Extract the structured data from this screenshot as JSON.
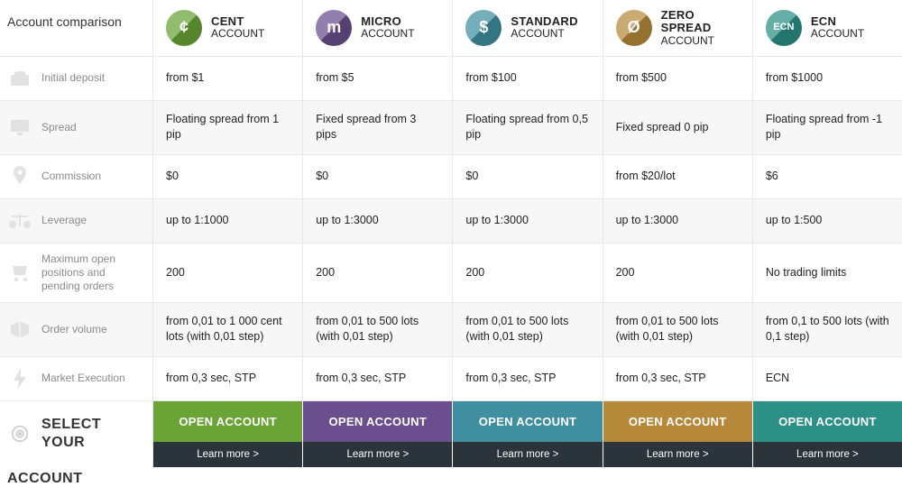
{
  "header_title": "Account comparison",
  "accounts": [
    {
      "id": "cent",
      "name": "CENT",
      "sub": "ACCOUNT",
      "badge_text": "¢",
      "badge_color": "#6aa436",
      "btn_bg": "#6aa436",
      "btn_label": "OPEN ACCOUNT",
      "learn": "Learn more >"
    },
    {
      "id": "micro",
      "name": "MICRO",
      "sub": "ACCOUNT",
      "badge_text": "m",
      "badge_color": "#6a4e8e",
      "btn_bg": "#6a4e8e",
      "btn_label": "OPEN ACCOUNT",
      "learn": "Learn more >"
    },
    {
      "id": "standard",
      "name": "STANDARD",
      "sub": "ACCOUNT",
      "badge_text": "$",
      "badge_color": "#3f8fa1",
      "btn_bg": "#3f8fa1",
      "btn_label": "OPEN ACCOUNT",
      "learn": "Learn more >"
    },
    {
      "id": "zero",
      "name": "ZERO SPREAD",
      "sub": "ACCOUNT",
      "badge_text": "Ø",
      "badge_color": "#b68a3a",
      "btn_bg": "#b68a3a",
      "btn_label": "OPEN ACCOUNT",
      "learn": "Learn more >"
    },
    {
      "id": "ecn",
      "name": "ECN",
      "sub": "ACCOUNT",
      "badge_text": "ECN",
      "badge_color": "#2b9086",
      "btn_bg": "#2b9086",
      "btn_label": "OPEN ACCOUNT",
      "learn": "Learn more >",
      "badge_fontsize": "11px"
    }
  ],
  "rows": [
    {
      "id": "deposit",
      "label": "Initial deposit",
      "icon": "wallet-icon",
      "cells": [
        "from $1",
        "from $5",
        "from $100",
        "from $500",
        "from $1000"
      ]
    },
    {
      "id": "spread",
      "label": "Spread",
      "icon": "monitor-icon",
      "cells": [
        "Floating spread from 1 pip",
        "Fixed spread from 3 pips",
        "Floating spread from 0,5 pip",
        "Fixed spread 0 pip",
        "Floating spread from -1 pip"
      ]
    },
    {
      "id": "commission",
      "label": "Commission",
      "icon": "pin-icon",
      "cells": [
        "$0",
        "$0",
        "$0",
        "from $20/lot",
        "$6"
      ]
    },
    {
      "id": "leverage",
      "label": "Leverage",
      "icon": "scales-icon",
      "cells": [
        "up to 1:1000",
        "up to 1:3000",
        "up to 1:3000",
        "up to 1:3000",
        "up to 1:500"
      ]
    },
    {
      "id": "maxopen",
      "label": "Maximum open positions and pending orders",
      "icon": "cart-icon",
      "cells": [
        "200",
        "200",
        "200",
        "200",
        "No trading limits"
      ]
    },
    {
      "id": "volume",
      "label": "Order volume",
      "icon": "box-icon",
      "cells": [
        "from 0,01 to 1 000 cent lots (with 0,01 step)",
        "from 0,01 to 500 lots (with 0,01 step)",
        "from 0,01 to 500 lots (with 0,01 step)",
        "from 0,01 to 500 lots (with 0,01 step)",
        "from 0,1 to 500 lots (with 0,1 step)"
      ]
    },
    {
      "id": "exec",
      "label": "Market Execution",
      "icon": "bolt-icon",
      "cells": [
        "from 0,3 sec, STP",
        "from 0,3 sec, STP",
        "from 0,3 sec, STP",
        "from 0,3 sec, STP",
        "ECN"
      ]
    }
  ],
  "footer": {
    "label_line1": "SELECT YOUR",
    "label_line2": "ACCOUNT",
    "icon": "target-icon"
  },
  "colors": {
    "row_border": "#e8e8e8",
    "muted": "#8a8a8a",
    "learn_bg": "#2b333b"
  }
}
